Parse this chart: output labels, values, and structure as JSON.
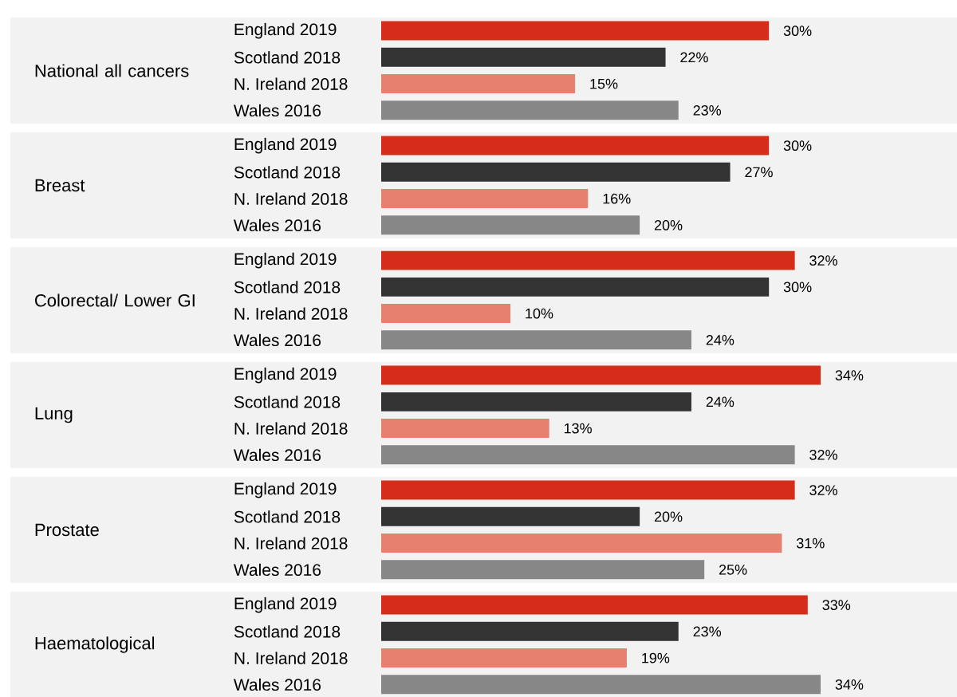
{
  "chart_data": [
    {
      "type": "bar",
      "orientation": "horizontal",
      "ylabel": "National all cancers",
      "categories": [
        "England 2019",
        "Scotland 2018",
        "N. Ireland 2018",
        "Wales 2016"
      ],
      "values": [
        30,
        22,
        15,
        23
      ],
      "value_labels": [
        "30%",
        "22%",
        "15%",
        "23%"
      ],
      "colors": [
        "#d62d1a",
        "#333333",
        "#e88070",
        "#878787"
      ]
    },
    {
      "type": "bar",
      "orientation": "horizontal",
      "ylabel": "Breast",
      "categories": [
        "England 2019",
        "Scotland 2018",
        "N. Ireland 2018",
        "Wales 2016"
      ],
      "values": [
        30,
        27,
        16,
        20
      ],
      "value_labels": [
        "30%",
        "27%",
        "16%",
        "20%"
      ],
      "colors": [
        "#d62d1a",
        "#333333",
        "#e88070",
        "#878787"
      ]
    },
    {
      "type": "bar",
      "orientation": "horizontal",
      "ylabel": "Colorectal/ Lower GI",
      "categories": [
        "England 2019",
        "Scotland 2018",
        "N. Ireland 2018",
        "Wales 2016"
      ],
      "values": [
        32,
        30,
        10,
        24
      ],
      "value_labels": [
        "32%",
        "30%",
        "10%",
        "24%"
      ],
      "colors": [
        "#d62d1a",
        "#333333",
        "#e88070",
        "#878787"
      ]
    },
    {
      "type": "bar",
      "orientation": "horizontal",
      "ylabel": "Lung",
      "categories": [
        "England 2019",
        "Scotland 2018",
        "N. Ireland 2018",
        "Wales 2016"
      ],
      "values": [
        34,
        24,
        13,
        32
      ],
      "value_labels": [
        "34%",
        "24%",
        "13%",
        "32%"
      ],
      "colors": [
        "#d62d1a",
        "#333333",
        "#e88070",
        "#878787"
      ]
    },
    {
      "type": "bar",
      "orientation": "horizontal",
      "ylabel": "Prostate",
      "categories": [
        "England 2019",
        "Scotland 2018",
        "N. Ireland 2018",
        "Wales 2016"
      ],
      "values": [
        32,
        20,
        31,
        25
      ],
      "value_labels": [
        "32%",
        "20%",
        "31%",
        "25%"
      ],
      "colors": [
        "#d62d1a",
        "#333333",
        "#e88070",
        "#878787"
      ]
    },
    {
      "type": "bar",
      "orientation": "horizontal",
      "ylabel": "Haematological",
      "categories": [
        "England 2019",
        "Scotland 2018",
        "N. Ireland 2018",
        "Wales 2016"
      ],
      "values": [
        33,
        23,
        19,
        34
      ],
      "value_labels": [
        "33%",
        "23%",
        "19%",
        "34%"
      ],
      "colors": [
        "#d62d1a",
        "#333333",
        "#e88070",
        "#878787"
      ]
    }
  ]
}
